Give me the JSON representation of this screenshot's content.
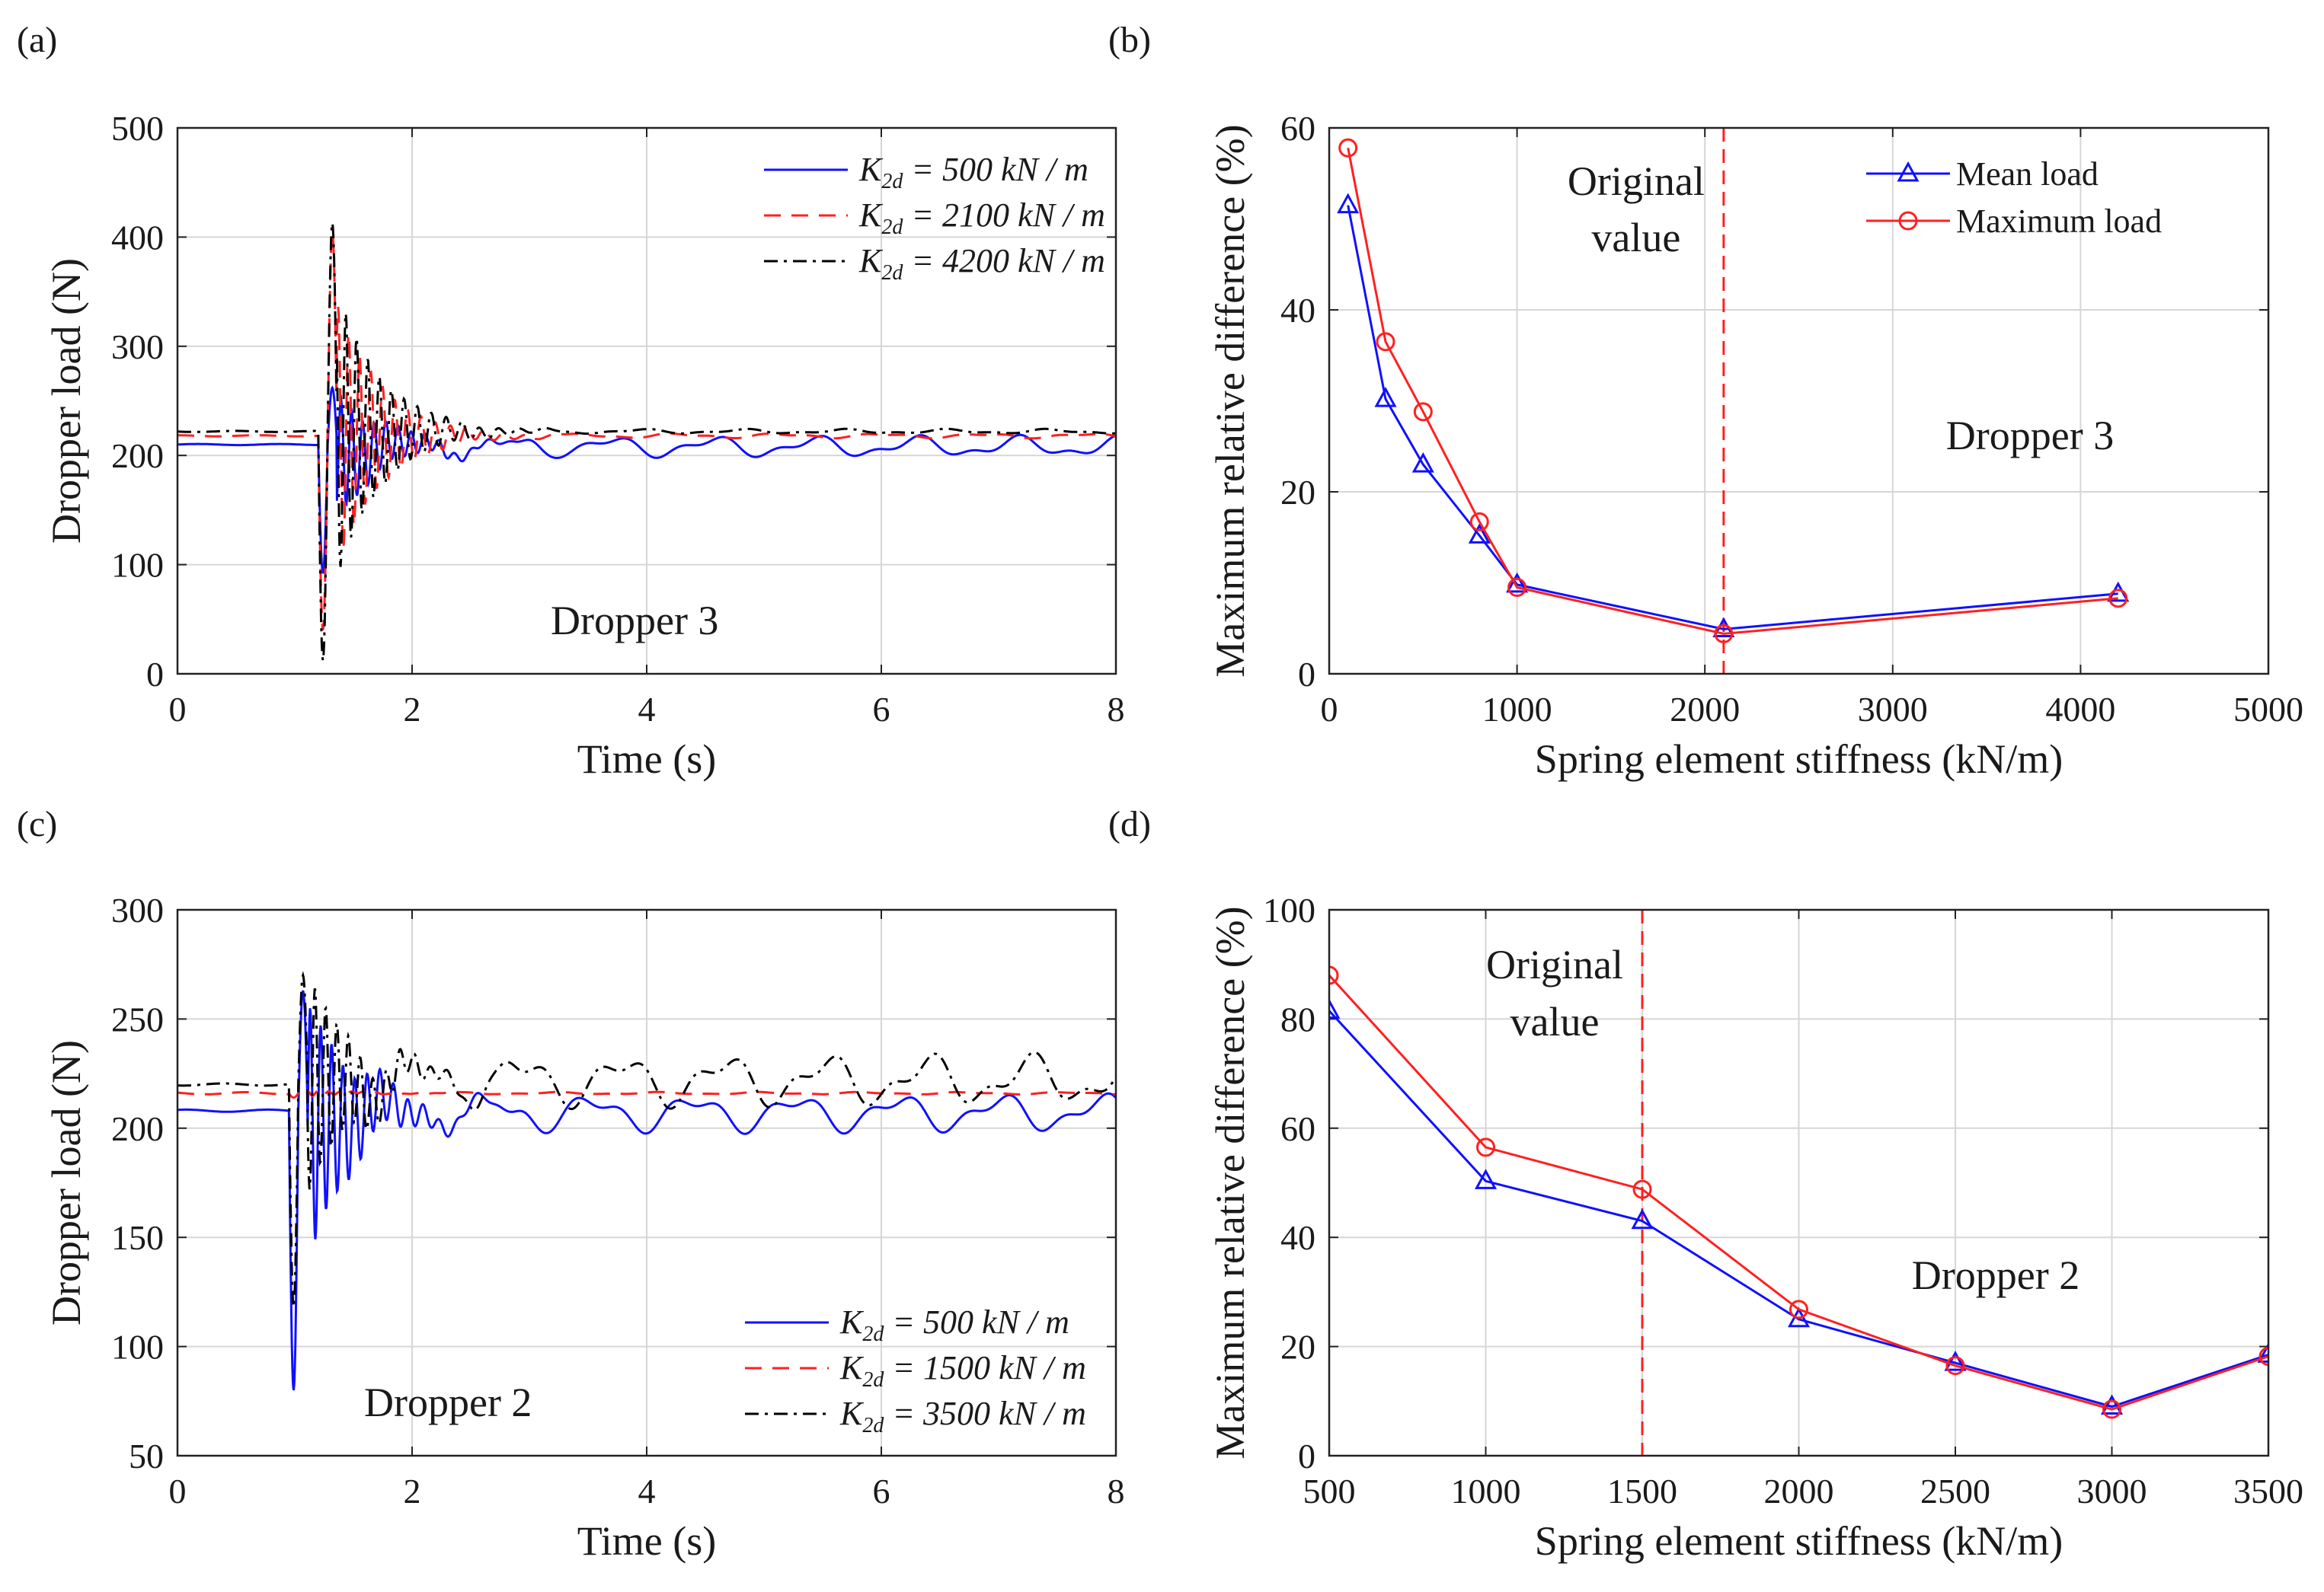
{
  "figure": {
    "panels": [
      "(a)",
      "(b)",
      "(c)",
      "(d)"
    ]
  },
  "colors": {
    "blue": "#1010ff",
    "red": "#ff2020",
    "black": "#000000",
    "grid": "#d6d6d6"
  },
  "chart_data": [
    {
      "id": "a",
      "panel_label": "(a)",
      "type": "line",
      "title": "",
      "xlabel": "Time (s)",
      "ylabel": "Dropper load (N)",
      "xlim": [
        0,
        8
      ],
      "ylim": [
        0,
        500
      ],
      "xticks": [
        0,
        2,
        4,
        6,
        8
      ],
      "yticks": [
        0,
        100,
        200,
        300,
        400,
        500
      ],
      "grid": true,
      "legend_position": "top-right",
      "annotation": "Dropper 3",
      "series": [
        {
          "name": "K_2d = 500 kN / m",
          "sym": "K",
          "sub": "2d",
          "value_text": "= 500 kN / m",
          "color": "#1010ff",
          "style": "solid",
          "baseline_before": 210,
          "impact_time": 1.2,
          "min": 92,
          "peak": 262,
          "baseline_after": 208,
          "osc_amp": 9
        },
        {
          "name": "K_2d = 2100 kN / m",
          "sym": "K",
          "sub": "2d",
          "value_text": "= 2100 kN / m",
          "color": "#ff2020",
          "style": "dashed",
          "baseline_before": 218,
          "impact_time": 1.2,
          "min": 40,
          "peak": 405,
          "baseline_after": 218,
          "osc_amp": 2
        },
        {
          "name": "K_2d = 4200 kN / m",
          "sym": "K",
          "sub": "2d",
          "value_text": "= 4200 kN / m",
          "color": "#000000",
          "style": "dashdot",
          "baseline_before": 222,
          "impact_time": 1.2,
          "min": 12,
          "peak": 413,
          "baseline_after": 222,
          "osc_amp": 2
        }
      ]
    },
    {
      "id": "b",
      "panel_label": "(b)",
      "type": "line",
      "title": "",
      "xlabel": "Spring element stiffness (kN/m)",
      "ylabel": "Maximum relative difference (%)",
      "xlim": [
        0,
        5000
      ],
      "ylim": [
        0,
        60
      ],
      "xticks": [
        0,
        1000,
        2000,
        3000,
        4000,
        5000
      ],
      "yticks": [
        0,
        20,
        40,
        60
      ],
      "grid": true,
      "legend_position": "top-right",
      "annotation": "Dropper 3",
      "vline": {
        "x": 2100,
        "label_line1": "Original",
        "label_line2": "value",
        "color": "#ff2020"
      },
      "series": [
        {
          "name": "Mean load",
          "marker": "triangle",
          "color": "#1010ff",
          "x": [
            100,
            300,
            500,
            800,
            1000,
            2100,
            4200
          ],
          "y": [
            51.5,
            30.2,
            23.0,
            15.2,
            9.8,
            4.9,
            8.8
          ]
        },
        {
          "name": "Maximum load",
          "marker": "circle",
          "color": "#ff2020",
          "x": [
            100,
            300,
            500,
            800,
            1000,
            2100,
            4200
          ],
          "y": [
            57.8,
            36.5,
            28.8,
            16.7,
            9.5,
            4.4,
            8.3
          ]
        }
      ]
    },
    {
      "id": "c",
      "panel_label": "(c)",
      "type": "line",
      "title": "",
      "xlabel": "Time (s)",
      "ylabel": "Dropper load (N)",
      "xlim": [
        0,
        8
      ],
      "ylim": [
        50,
        300
      ],
      "xticks": [
        0,
        2,
        4,
        6,
        8
      ],
      "yticks": [
        50,
        100,
        150,
        200,
        250,
        300
      ],
      "grid": true,
      "legend_position": "bottom-right",
      "annotation": "Dropper 2",
      "series": [
        {
          "name": "K_2d = 500 kN / m",
          "sym": "K",
          "sub": "2d",
          "value_text": "= 500 kN / m",
          "color": "#1010ff",
          "style": "solid",
          "baseline_before": 208,
          "impact_time": 0.95,
          "min": 80,
          "peak": 263,
          "baseline_after": 207,
          "osc_amp": 8
        },
        {
          "name": "K_2d = 1500 kN / m",
          "sym": "K",
          "sub": "2d",
          "value_text": "= 1500 kN / m",
          "color": "#ff2020",
          "style": "dashed",
          "baseline_before": 216,
          "impact_time": 0.95,
          "min": 214,
          "peak": 218,
          "baseline_after": 216,
          "osc_amp": 0.5
        },
        {
          "name": "K_2d = 3500 kN / m",
          "sym": "K",
          "sub": "2d",
          "value_text": "= 3500 kN / m",
          "color": "#000000",
          "style": "dashdot",
          "baseline_before": 220,
          "impact_time": 0.95,
          "min": 118,
          "peak": 270,
          "baseline_after": 222,
          "osc_amp": 11
        }
      ]
    },
    {
      "id": "d",
      "panel_label": "(d)",
      "type": "line",
      "title": "",
      "xlabel": "Spring element stiffness (kN/m)",
      "ylabel": "Maximum relative difference (%)",
      "xlim": [
        500,
        3500
      ],
      "ylim": [
        0,
        100
      ],
      "xticks": [
        500,
        1000,
        1500,
        2000,
        2500,
        3000,
        3500
      ],
      "yticks": [
        0,
        20,
        40,
        60,
        80,
        100
      ],
      "grid": true,
      "legend_position": "none",
      "annotation": "Dropper 2",
      "vline": {
        "x": 1500,
        "label_line1": "Original",
        "label_line2": "value",
        "color": "#ff2020"
      },
      "series": [
        {
          "name": "Mean load",
          "marker": "triangle",
          "color": "#1010ff",
          "x": [
            500,
            1000,
            1500,
            2000,
            2500,
            3000,
            3500
          ],
          "y": [
            81.5,
            50.3,
            43.0,
            25.0,
            17.0,
            9.0,
            18.5
          ]
        },
        {
          "name": "Maximum load",
          "marker": "circle",
          "color": "#ff2020",
          "x": [
            500,
            1000,
            1500,
            2000,
            2500,
            3000,
            3500
          ],
          "y": [
            88.0,
            56.5,
            48.8,
            26.8,
            16.5,
            8.5,
            18.2
          ]
        }
      ]
    }
  ]
}
